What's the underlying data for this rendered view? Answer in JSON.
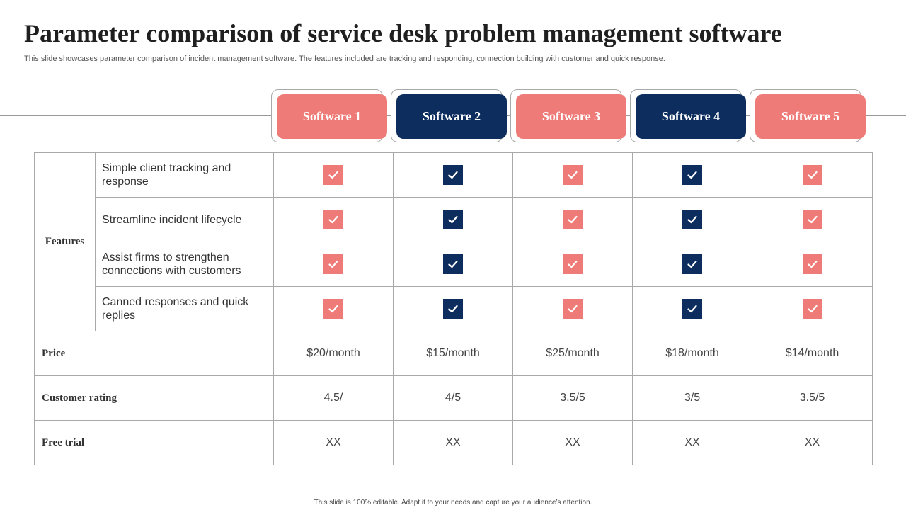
{
  "title": "Parameter comparison of service desk problem management software",
  "subtitle": "This slide showcases parameter comparison of incident management software. The features included are tracking and responding, connection building with customer and quick response.",
  "colors": {
    "pink": "#ef7b78",
    "navy": "#0d2d5e"
  },
  "columns": [
    {
      "label": "Software 1",
      "color": "pink"
    },
    {
      "label": "Software 2",
      "color": "navy"
    },
    {
      "label": "Software 3",
      "color": "pink"
    },
    {
      "label": "Software 4",
      "color": "navy"
    },
    {
      "label": "Software 5",
      "color": "pink"
    }
  ],
  "features_group_label": "Features",
  "features": [
    "Simple client tracking and response",
    "Streamline incident lifecycle",
    "Assist firms to strengthen connections with customers",
    "Canned responses and quick replies"
  ],
  "check_icon": "checkmark-icon",
  "rows": [
    {
      "label": "Price",
      "values": [
        "$20/month",
        "$15/month",
        "$25/month",
        "$18/month",
        "$14/month"
      ]
    },
    {
      "label": "Customer rating",
      "values": [
        "4.5/",
        "4/5",
        "3.5/5",
        "3/5",
        "3.5/5"
      ]
    },
    {
      "label": "Free trial",
      "values": [
        "XX",
        "XX",
        "XX",
        "XX",
        "XX"
      ]
    }
  ],
  "footer": "This slide is 100% editable. Adapt it to your needs and capture your audience’s attention."
}
